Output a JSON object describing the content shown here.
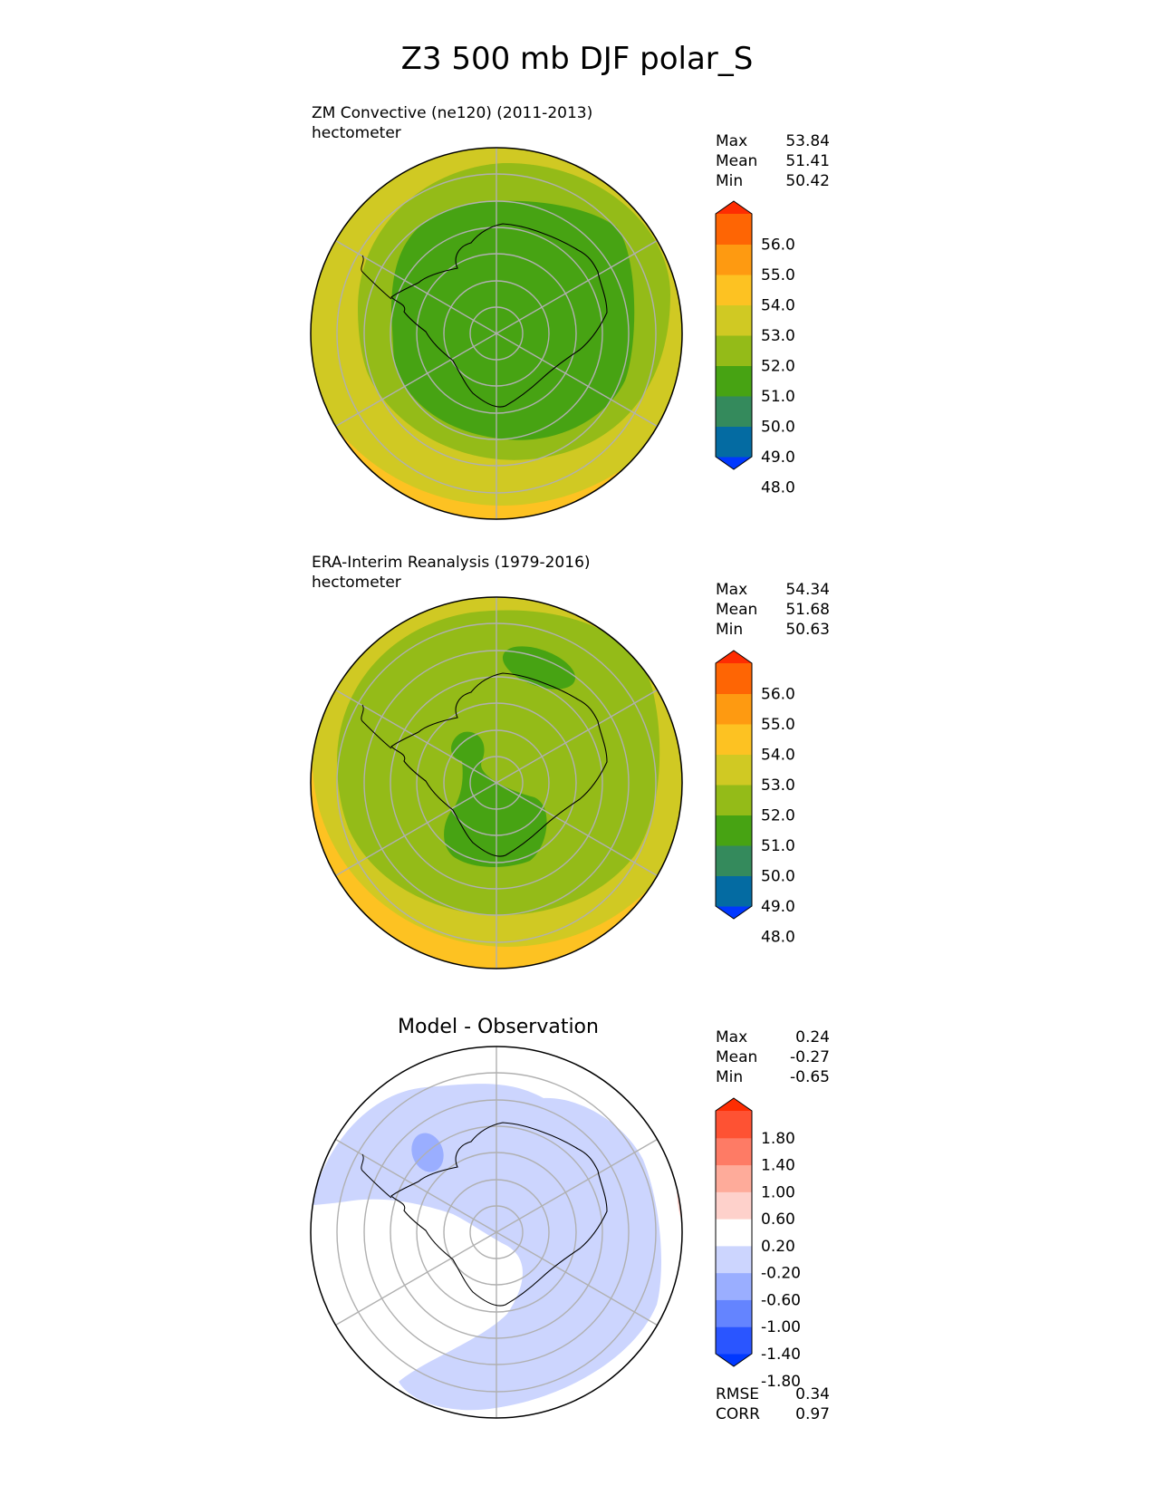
{
  "figure": {
    "title": "Z3 500 mb DJF polar_S"
  },
  "panels": [
    {
      "id": "test",
      "heading": "ZM Convective (ne120) (2011-2013)",
      "units": "hectometer",
      "stats": [
        {
          "label": "Max",
          "value": "53.84"
        },
        {
          "label": "Mean",
          "value": "51.41"
        },
        {
          "label": "Min",
          "value": "50.42"
        }
      ],
      "colorbar": {
        "ticks": [
          "56.0",
          "55.0",
          "54.0",
          "53.0",
          "52.0",
          "51.0",
          "50.0",
          "49.0",
          "48.0"
        ],
        "colors": [
          "#0038ff",
          "#046ba2",
          "#348a5c",
          "#47a313",
          "#94bb18",
          "#d0c923",
          "#fdc222",
          "#fe9a11",
          "#fe6504",
          "#fe2d02"
        ]
      },
      "field": {
        "background": "#fdc222",
        "levels": [
          {
            "value_range": "52.0-53.0",
            "color": "#d0c923"
          },
          {
            "value_range": "51.0-52.0",
            "color": "#94bb18"
          },
          {
            "value_range": "50.0-51.0",
            "color": "#47a313"
          }
        ]
      }
    },
    {
      "id": "reference",
      "heading": "ERA-Interim Reanalysis (1979-2016)",
      "units": "hectometer",
      "stats": [
        {
          "label": "Max",
          "value": "54.34"
        },
        {
          "label": "Mean",
          "value": "51.68"
        },
        {
          "label": "Min",
          "value": "50.63"
        }
      ],
      "colorbar": {
        "ticks": [
          "56.0",
          "55.0",
          "54.0",
          "53.0",
          "52.0",
          "51.0",
          "50.0",
          "49.0",
          "48.0"
        ],
        "colors": [
          "#0038ff",
          "#046ba2",
          "#348a5c",
          "#47a313",
          "#94bb18",
          "#d0c923",
          "#fdc222",
          "#fe9a11",
          "#fe6504",
          "#fe2d02"
        ]
      },
      "field": {
        "background": "#fdc222",
        "levels": [
          {
            "value_range": "54.0-55.0",
            "color": "#fe9a11"
          },
          {
            "value_range": "52.0-53.0",
            "color": "#d0c923"
          },
          {
            "value_range": "51.0-52.0",
            "color": "#94bb18"
          },
          {
            "value_range": "50.0-51.0",
            "color": "#47a313"
          }
        ]
      }
    },
    {
      "id": "diff",
      "heading": "Model - Observation",
      "units": "",
      "stats": [
        {
          "label": "Max",
          "value": "0.24"
        },
        {
          "label": "Mean",
          "value": "-0.27"
        },
        {
          "label": "Min",
          "value": "-0.65"
        }
      ],
      "colorbar": {
        "ticks": [
          "1.80",
          "1.40",
          "1.00",
          "0.60",
          "0.20",
          "-0.20",
          "-0.60",
          "-1.00",
          "-1.40",
          "-1.80"
        ],
        "colors": [
          "#0038ff",
          "#2a55ff",
          "#6484ff",
          "#9aaeff",
          "#ccd5fe",
          "#ffffff",
          "#fed1cb",
          "#feab9a",
          "#fe7b65",
          "#fe5233",
          "#fe2d02"
        ]
      },
      "field": {
        "background": "#ffffff",
        "levels": [
          {
            "value_range": "-0.60--0.20",
            "color": "#ccd5fe"
          },
          {
            "value_range": "-1.00--0.60",
            "color": "#9aaeff"
          },
          {
            "value_range": "0.20-0.60",
            "color": "#fed1cb"
          }
        ]
      },
      "metrics": [
        {
          "label": "RMSE",
          "value": "0.34"
        },
        {
          "label": "CORR",
          "value": "0.97"
        }
      ]
    }
  ]
}
